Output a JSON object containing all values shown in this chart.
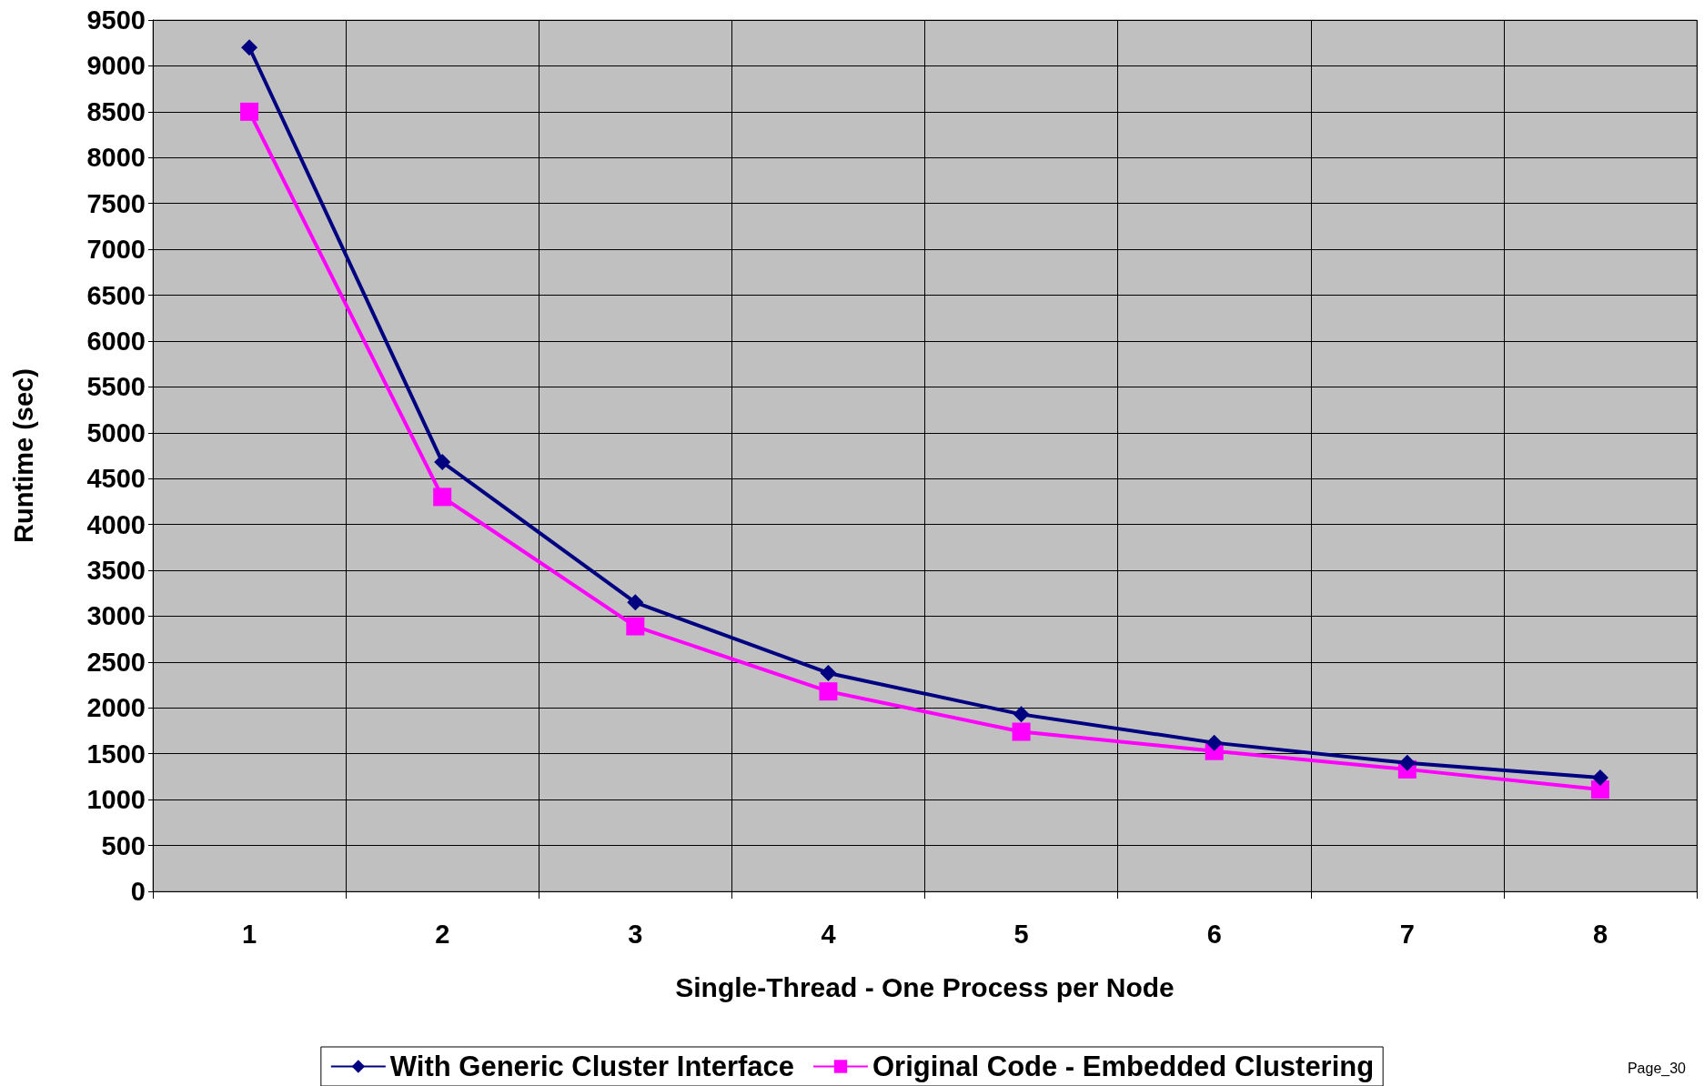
{
  "chart_data": {
    "type": "line",
    "xlabel": "Single-Thread - One Process per Node",
    "ylabel": "Runtime (sec)",
    "categories": [
      "1",
      "2",
      "3",
      "4",
      "5",
      "6",
      "7",
      "8"
    ],
    "series": [
      {
        "name": "With Generic Cluster Interface",
        "color": "#000080",
        "marker": "diamond",
        "values": [
          9200,
          4680,
          3150,
          2380,
          1930,
          1620,
          1400,
          1240
        ]
      },
      {
        "name": "Original Code - Embedded Clustering",
        "color": "#ff00ff",
        "marker": "square",
        "values": [
          8500,
          4300,
          2890,
          2180,
          1740,
          1530,
          1330,
          1110
        ]
      }
    ],
    "ylim": [
      0,
      9500
    ],
    "yticks": [
      0,
      500,
      1000,
      1500,
      2000,
      2500,
      3000,
      3500,
      4000,
      4500,
      5000,
      5500,
      6000,
      6500,
      7000,
      7500,
      8000,
      8500,
      9000,
      9500
    ],
    "grid": true,
    "legend": "bottom",
    "line_style": "solid",
    "annotations": [
      "Page_30"
    ]
  }
}
